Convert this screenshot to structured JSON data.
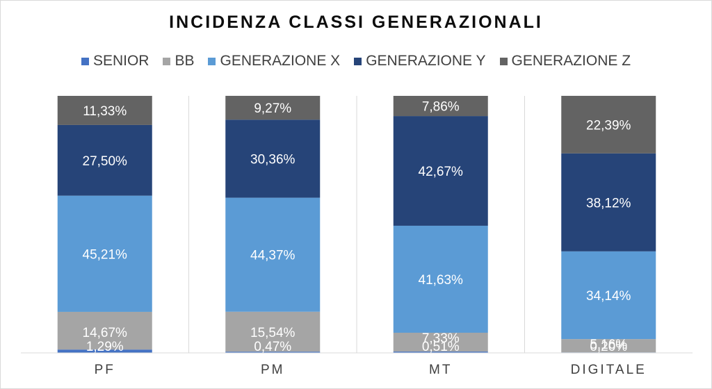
{
  "chart_data": {
    "type": "bar",
    "stacked": true,
    "title": "INCIDENZA CLASSI GENERAZIONALI",
    "xlabel": "",
    "ylabel": "",
    "ylim": [
      0,
      100
    ],
    "grid": false,
    "legend_position": "top",
    "categories": [
      "PF",
      "PM",
      "MT",
      "DIGITALE"
    ],
    "series": [
      {
        "name": "SENIOR",
        "color": "#4472c4",
        "values": [
          1.29,
          0.47,
          0.51,
          0.2
        ],
        "labels": [
          "1,29%",
          "0,47%",
          "0,51%",
          "0,20%"
        ]
      },
      {
        "name": "BB",
        "color": "#a5a5a5",
        "values": [
          14.67,
          15.54,
          7.33,
          5.16
        ],
        "labels": [
          "14,67%",
          "15,54%",
          "7,33%",
          "5,16%"
        ]
      },
      {
        "name": "GENERAZIONE X",
        "color": "#5b9bd5",
        "values": [
          45.21,
          44.37,
          41.63,
          34.14
        ],
        "labels": [
          "45,21%",
          "44,37%",
          "41,63%",
          "34,14%"
        ]
      },
      {
        "name": "GENERAZIONE Y",
        "color": "#264478",
        "values": [
          27.5,
          30.36,
          42.67,
          38.12
        ],
        "labels": [
          "27,50%",
          "30,36%",
          "42,67%",
          "38,12%"
        ]
      },
      {
        "name": "GENERAZIONE Z",
        "color": "#636363",
        "values": [
          11.33,
          9.27,
          7.86,
          22.39
        ],
        "labels": [
          "11,33%",
          "9,27%",
          "7,86%",
          "22,39%"
        ]
      }
    ]
  }
}
